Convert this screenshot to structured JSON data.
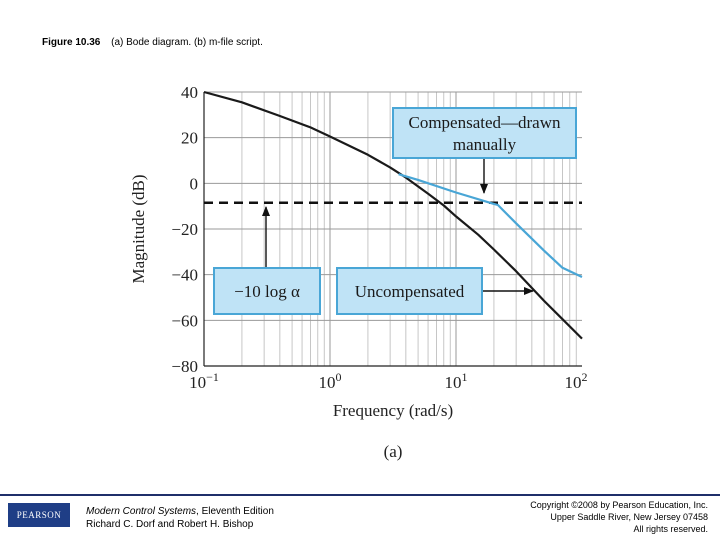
{
  "caption": {
    "figure_number": "Figure 10.36",
    "text": "(a) Bode diagram. (b) m-file script."
  },
  "chart_data": {
    "type": "line",
    "panel_label": "(a)",
    "xlabel": "Frequency (rad/s)",
    "ylabel": "Magnitude (dB)",
    "xscale": "log",
    "xlim": [
      0.1,
      100
    ],
    "ylim": [
      -80,
      40
    ],
    "yticks": [
      40,
      20,
      0,
      -20,
      -40,
      -60,
      -80
    ],
    "ytick_labels": [
      "40",
      "20",
      "0",
      "−20",
      "−40",
      "−60",
      "−80"
    ],
    "xticks": [
      0.1,
      1,
      10,
      100
    ],
    "xtick_labels": [
      {
        "base": "10",
        "exp": "−1"
      },
      {
        "base": "10",
        "exp": "0"
      },
      {
        "base": "10",
        "exp": "1"
      },
      {
        "base": "10",
        "exp": "2"
      }
    ],
    "grid": true,
    "series": [
      {
        "name": "Uncompensated",
        "color": "#1a1a1a",
        "x": [
          0.1,
          0.2,
          0.4,
          0.7,
          1,
          2,
          3,
          4,
          6,
          8,
          10,
          15,
          20,
          30,
          50,
          70,
          100
        ],
        "y": [
          40,
          35.5,
          29.5,
          24.5,
          20.5,
          12.5,
          7,
          2.5,
          -4.5,
          -9.7,
          -14.5,
          -22.5,
          -29,
          -38.5,
          -51.5,
          -59.5,
          -68
        ]
      },
      {
        "name": "Compensated—drawn manually",
        "color": "#49a6d6",
        "x": [
          3.5,
          5,
          10,
          20,
          21.5,
          30,
          50,
          70,
          100
        ],
        "y": [
          4,
          1.5,
          -4,
          -9,
          -9.5,
          -17.5,
          -29.5,
          -37,
          -41
        ]
      }
    ],
    "reference_line": {
      "label": "−10 log α",
      "y": -8.5,
      "style": "dashed",
      "color": "#111111"
    },
    "annotations": [
      {
        "text_lines": [
          "Compensated—drawn",
          "manually"
        ],
        "target": "compensated-curve",
        "box_color": "#bfe3f6",
        "border_color": "#49a6d6"
      },
      {
        "text_lines": [
          "−10 log α"
        ],
        "target": "reference-line",
        "box_color": "#bfe3f6",
        "border_color": "#49a6d6"
      },
      {
        "text_lines": [
          "Uncompensated"
        ],
        "target": "uncompensated-curve",
        "box_color": "#bfe3f6",
        "border_color": "#49a6d6"
      }
    ]
  },
  "footer": {
    "logo_text": "PEARSON",
    "book_title": "Modern Control Systems",
    "book_edition": ", Eleventh Edition",
    "authors": "Richard C. Dorf and Robert H. Bishop",
    "copyright_line1": "Copyright ©2008 by Pearson Education, Inc.",
    "copyright_line2": "Upper Saddle River, New Jersey 07458",
    "copyright_line3": "All rights reserved."
  },
  "colors": {
    "accent": "#49a6d6",
    "box_fill": "#bfe3f6",
    "footer_rule": "#1f2f6a"
  }
}
